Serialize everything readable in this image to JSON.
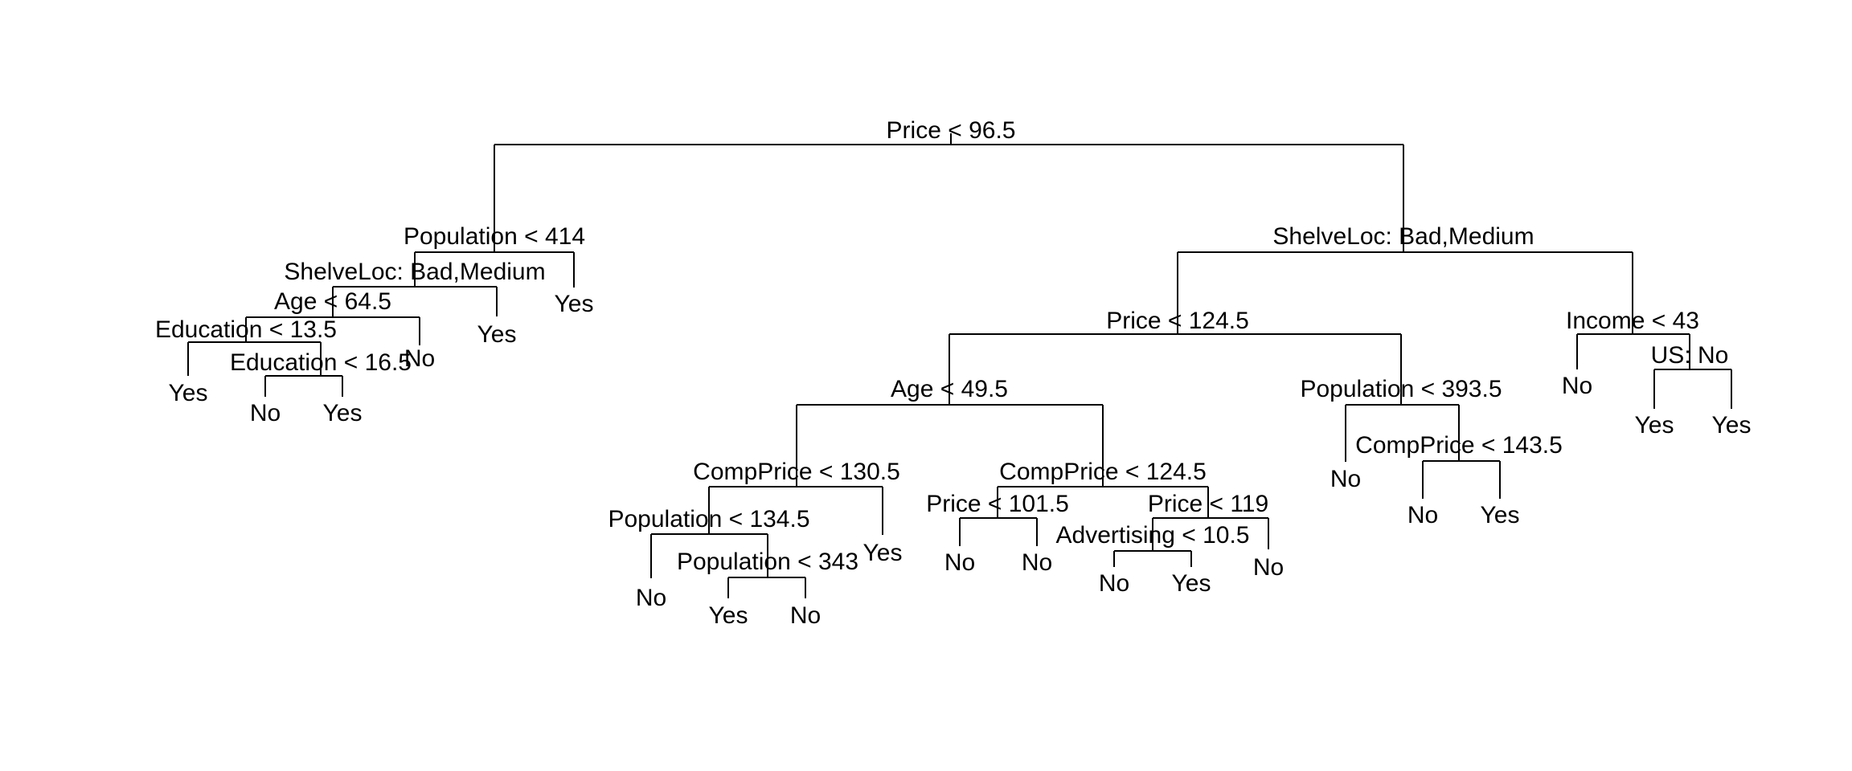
{
  "diagram": {
    "type": "decision-tree",
    "colors": {
      "line": "#000000",
      "text": "#000000",
      "background": "#ffffff"
    },
    "splits": [
      {
        "id": "s1",
        "label": "Price < 96.5"
      },
      {
        "id": "s2",
        "label": "Population < 414"
      },
      {
        "id": "s3",
        "label": "ShelveLoc: Bad,Medium"
      },
      {
        "id": "s4",
        "label": "Age < 64.5"
      },
      {
        "id": "s5",
        "label": "Education < 13.5"
      },
      {
        "id": "s6",
        "label": "Education < 16.5"
      },
      {
        "id": "s7",
        "label": "ShelveLoc: Bad,Medium"
      },
      {
        "id": "s8",
        "label": "Price < 124.5"
      },
      {
        "id": "s9",
        "label": "Age < 49.5"
      },
      {
        "id": "s10",
        "label": "CompPrice < 130.5"
      },
      {
        "id": "s11",
        "label": "Population < 134.5"
      },
      {
        "id": "s12",
        "label": "Population < 343"
      },
      {
        "id": "s13",
        "label": "CompPrice < 124.5"
      },
      {
        "id": "s14",
        "label": "Price < 101.5"
      },
      {
        "id": "s15",
        "label": "Price < 119"
      },
      {
        "id": "s16",
        "label": "Advertising < 10.5"
      },
      {
        "id": "s17",
        "label": "Population < 393.5"
      },
      {
        "id": "s18",
        "label": "CompPrice < 143.5"
      },
      {
        "id": "s19",
        "label": "Income < 43"
      },
      {
        "id": "s20",
        "label": "US: No"
      }
    ],
    "leaves": [
      {
        "id": "l1",
        "label": "Yes"
      },
      {
        "id": "l2",
        "label": "No"
      },
      {
        "id": "l3",
        "label": "Yes"
      },
      {
        "id": "l4",
        "label": "No"
      },
      {
        "id": "l5",
        "label": "Yes"
      },
      {
        "id": "l6",
        "label": "Yes"
      },
      {
        "id": "l7",
        "label": "No"
      },
      {
        "id": "l8",
        "label": "Yes"
      },
      {
        "id": "l9",
        "label": "No"
      },
      {
        "id": "l10",
        "label": "Yes"
      },
      {
        "id": "l11",
        "label": "No"
      },
      {
        "id": "l12",
        "label": "No"
      },
      {
        "id": "l13",
        "label": "No"
      },
      {
        "id": "l14",
        "label": "Yes"
      },
      {
        "id": "l15",
        "label": "No"
      },
      {
        "id": "l16",
        "label": "No"
      },
      {
        "id": "l17",
        "label": "No"
      },
      {
        "id": "l18",
        "label": "Yes"
      },
      {
        "id": "l19",
        "label": "No"
      },
      {
        "id": "l20",
        "label": "Yes"
      },
      {
        "id": "l21",
        "label": "Yes"
      }
    ]
  }
}
